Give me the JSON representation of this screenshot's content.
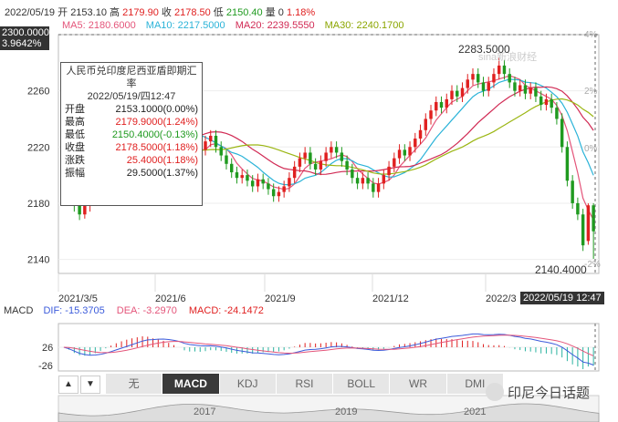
{
  "header": {
    "date": "2022/05/19",
    "open_label": "开",
    "open": "2153.10",
    "high_label": "高",
    "high": "2179.90",
    "close_label": "收",
    "close": "2178.50",
    "low_label": "低",
    "low": "2150.40",
    "vol_label": "量",
    "vol": "0",
    "chg": "1.18%"
  },
  "ma": {
    "ma5": "MA5: 2180.6000",
    "ma10": "MA10: 2217.5000",
    "ma20": "MA20: 2239.5550",
    "ma30": "MA30: 2240.1700",
    "ma5_color": "#e4557a",
    "ma10_color": "#2bb3d8",
    "ma20_color": "#d12a54",
    "ma30_color": "#9bb613"
  },
  "cursor": {
    "price": "2300.0000",
    "pct": "3.9642%",
    "time": "2022/05/19 12:47"
  },
  "tooltip": {
    "title": "人民币兑印度尼西亚盾即期汇率",
    "datetime": "2022/05/19/四12:47",
    "rows": [
      {
        "label": "开盘",
        "value": "2153.1000(0.00%)",
        "color": "#222222"
      },
      {
        "label": "最高",
        "value": "2179.9000(1.24%)",
        "color": "#e02020"
      },
      {
        "label": "最低",
        "value": "2150.4000(-0.13%)",
        "color": "#1f9a1f"
      },
      {
        "label": "收盘",
        "value": "2178.5000(1.18%)",
        "color": "#e02020"
      },
      {
        "label": "涨跌",
        "value": "25.4000(1.18%)",
        "color": "#e02020"
      },
      {
        "label": "振幅",
        "value": "29.5000(1.37%)",
        "color": "#222222"
      }
    ]
  },
  "watermark": "sina新浪财经",
  "annotations": {
    "max": "2283.5000",
    "min": "2140.4000"
  },
  "macd": {
    "label": "MACD",
    "dif": "DIF: -15.3705",
    "dea": "DEA: -3.2970",
    "macd": "MACD: -24.1472",
    "ytick_top": "26",
    "ytick_bottom": "-26",
    "dif_color": "#3b5bdb",
    "dea_color": "#e4557a"
  },
  "tabs": [
    "无",
    "MACD",
    "KDJ",
    "RSI",
    "BOLL",
    "WR",
    "DMI"
  ],
  "active_tab": "MACD",
  "nav_years": [
    "2017",
    "2019",
    "2021"
  ],
  "footer_watermark": "印尼今日话题",
  "chart_data": {
    "type": "candlestick",
    "title": "人民币兑印度尼西亚盾即期汇率",
    "y_ticks": [
      2260,
      2220,
      2180,
      2140
    ],
    "ylim": [
      2130,
      2300
    ],
    "right_ticks": [
      "4%",
      "2%",
      "0%",
      "-2%"
    ],
    "x_ticks": [
      "2021/3/5",
      "2021/6",
      "2021/9",
      "2021/12",
      "2022/3"
    ],
    "up_color": "#e02020",
    "down_color": "#1f9a1f",
    "candles": [
      [
        2210,
        2218,
        2205,
        2220
      ],
      [
        2205,
        2195,
        2190,
        2208
      ],
      [
        2192,
        2178,
        2174,
        2195
      ],
      [
        2180,
        2172,
        2168,
        2184
      ],
      [
        2172,
        2178,
        2169,
        2181
      ],
      [
        2178,
        2182,
        2174,
        2186
      ],
      [
        2182,
        2190,
        2179,
        2194
      ],
      [
        2190,
        2197,
        2186,
        2200
      ],
      [
        2196,
        2206,
        2193,
        2209
      ],
      [
        2206,
        2214,
        2203,
        2218
      ],
      [
        2214,
        2220,
        2210,
        2224
      ],
      [
        2220,
        2226,
        2216,
        2230
      ],
      [
        2226,
        2232,
        2222,
        2236
      ],
      [
        2232,
        2238,
        2228,
        2242
      ],
      [
        2238,
        2244,
        2234,
        2248
      ],
      [
        2244,
        2252,
        2240,
        2256
      ],
      [
        2252,
        2248,
        2244,
        2256
      ],
      [
        2248,
        2240,
        2236,
        2252
      ],
      [
        2240,
        2246,
        2236,
        2250
      ],
      [
        2246,
        2242,
        2238,
        2250
      ],
      [
        2242,
        2236,
        2232,
        2246
      ],
      [
        2236,
        2230,
        2226,
        2240
      ],
      [
        2230,
        2225,
        2221,
        2234
      ],
      [
        2225,
        2210,
        2206,
        2229
      ],
      [
        2210,
        2216,
        2206,
        2220
      ],
      [
        2216,
        2222,
        2212,
        2226
      ],
      [
        2222,
        2218,
        2214,
        2226
      ],
      [
        2218,
        2224,
        2214,
        2228
      ],
      [
        2224,
        2228,
        2220,
        2232
      ],
      [
        2228,
        2220,
        2216,
        2232
      ],
      [
        2220,
        2214,
        2210,
        2224
      ],
      [
        2214,
        2208,
        2204,
        2218
      ],
      [
        2208,
        2202,
        2198,
        2212
      ],
      [
        2202,
        2198,
        2194,
        2206
      ],
      [
        2198,
        2200,
        2194,
        2204
      ],
      [
        2200,
        2196,
        2192,
        2204
      ],
      [
        2196,
        2192,
        2188,
        2200
      ],
      [
        2192,
        2197,
        2188,
        2201
      ],
      [
        2197,
        2194,
        2190,
        2201
      ],
      [
        2194,
        2190,
        2186,
        2198
      ],
      [
        2190,
        2185,
        2181,
        2194
      ],
      [
        2185,
        2188,
        2181,
        2192
      ],
      [
        2188,
        2192,
        2184,
        2196
      ],
      [
        2192,
        2198,
        2188,
        2202
      ],
      [
        2198,
        2206,
        2194,
        2210
      ],
      [
        2206,
        2212,
        2202,
        2216
      ],
      [
        2212,
        2216,
        2208,
        2220
      ],
      [
        2216,
        2208,
        2204,
        2220
      ],
      [
        2208,
        2204,
        2200,
        2212
      ],
      [
        2204,
        2210,
        2200,
        2214
      ],
      [
        2210,
        2216,
        2206,
        2220
      ],
      [
        2216,
        2220,
        2212,
        2224
      ],
      [
        2220,
        2216,
        2212,
        2224
      ],
      [
        2216,
        2210,
        2206,
        2220
      ],
      [
        2210,
        2204,
        2200,
        2214
      ],
      [
        2204,
        2198,
        2194,
        2208
      ],
      [
        2198,
        2194,
        2190,
        2202
      ],
      [
        2194,
        2198,
        2190,
        2202
      ],
      [
        2198,
        2194,
        2190,
        2202
      ],
      [
        2194,
        2188,
        2184,
        2198
      ],
      [
        2188,
        2194,
        2184,
        2198
      ],
      [
        2194,
        2200,
        2190,
        2204
      ],
      [
        2200,
        2206,
        2196,
        2210
      ],
      [
        2206,
        2212,
        2202,
        2216
      ],
      [
        2212,
        2218,
        2208,
        2222
      ],
      [
        2218,
        2214,
        2210,
        2222
      ],
      [
        2214,
        2220,
        2210,
        2224
      ],
      [
        2220,
        2226,
        2216,
        2230
      ],
      [
        2226,
        2232,
        2222,
        2236
      ],
      [
        2232,
        2240,
        2228,
        2244
      ],
      [
        2240,
        2246,
        2236,
        2250
      ],
      [
        2246,
        2252,
        2242,
        2256
      ],
      [
        2252,
        2248,
        2244,
        2256
      ],
      [
        2248,
        2254,
        2244,
        2258
      ],
      [
        2254,
        2260,
        2250,
        2264
      ],
      [
        2260,
        2256,
        2252,
        2264
      ],
      [
        2256,
        2262,
        2252,
        2266
      ],
      [
        2262,
        2268,
        2258,
        2272
      ],
      [
        2268,
        2272,
        2264,
        2276
      ],
      [
        2272,
        2266,
        2262,
        2276
      ],
      [
        2266,
        2260,
        2256,
        2270
      ],
      [
        2260,
        2266,
        2256,
        2270
      ],
      [
        2266,
        2272,
        2262,
        2276
      ],
      [
        2272,
        2278,
        2268,
        2283.5
      ],
      [
        2278,
        2272,
        2268,
        2282
      ],
      [
        2272,
        2266,
        2262,
        2276
      ],
      [
        2266,
        2260,
        2256,
        2270
      ],
      [
        2260,
        2264,
        2256,
        2268
      ],
      [
        2264,
        2258,
        2254,
        2268
      ],
      [
        2258,
        2262,
        2254,
        2266
      ],
      [
        2262,
        2256,
        2252,
        2266
      ],
      [
        2256,
        2250,
        2246,
        2260
      ],
      [
        2250,
        2254,
        2246,
        2258
      ],
      [
        2254,
        2248,
        2244,
        2258
      ],
      [
        2248,
        2240,
        2236,
        2252
      ],
      [
        2240,
        2220,
        2216,
        2244
      ],
      [
        2220,
        2196,
        2192,
        2224
      ],
      [
        2196,
        2180,
        2176,
        2200
      ],
      [
        2180,
        2172,
        2168,
        2184
      ],
      [
        2172,
        2150,
        2146,
        2176
      ],
      [
        2153.1,
        2178.5,
        2150.4,
        2179.9
      ],
      [
        2178.5,
        2160,
        2140.4,
        2180
      ]
    ]
  }
}
